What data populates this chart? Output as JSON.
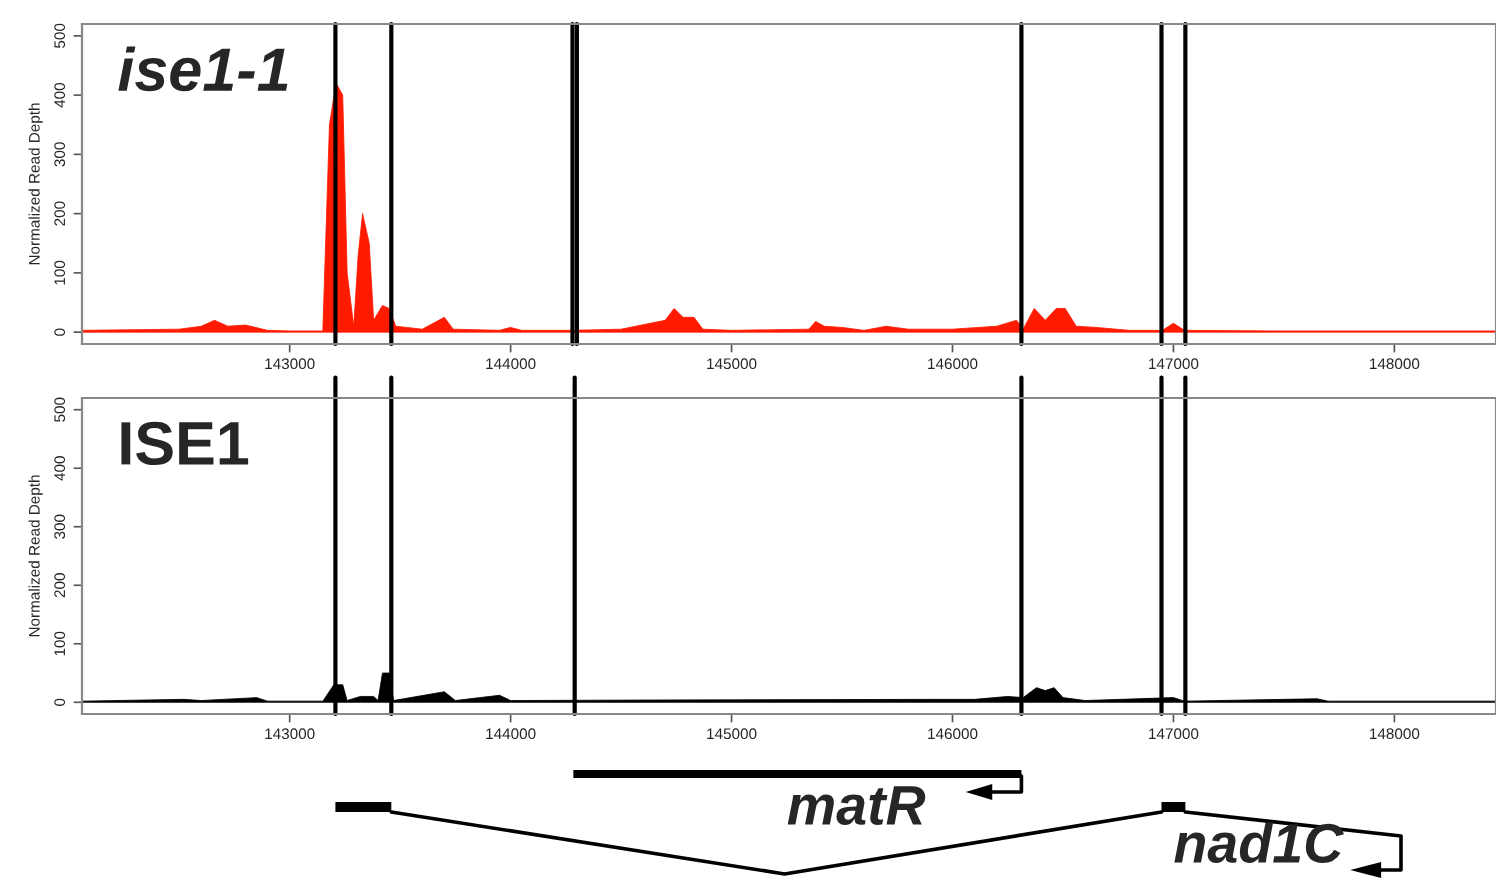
{
  "chart_data": [
    {
      "type": "area",
      "title": "ise1-1",
      "ylabel": "Normalized Read Depth",
      "series": [
        {
          "color": "#ff1a00",
          "x": [
            142060,
            142500,
            142600,
            142660,
            142720,
            142800,
            142900,
            143000,
            143150,
            143180,
            143210,
            143240,
            143260,
            143290,
            143310,
            143330,
            143360,
            143380,
            143420,
            143450,
            143480,
            143600,
            143700,
            143740,
            143950,
            144000,
            144050,
            144280,
            144500,
            144700,
            144740,
            144780,
            144830,
            144870,
            145000,
            145350,
            145380,
            145420,
            145500,
            145600,
            145700,
            145800,
            146000,
            146200,
            146290,
            146320,
            146370,
            146420,
            146470,
            146510,
            146560,
            146650,
            146800,
            146950,
            147000,
            147050,
            147500,
            148460
          ],
          "values": [
            3,
            5,
            10,
            20,
            10,
            12,
            3,
            2,
            2,
            350,
            420,
            400,
            100,
            10,
            130,
            200,
            150,
            20,
            45,
            40,
            10,
            5,
            25,
            5,
            3,
            8,
            3,
            3,
            5,
            20,
            40,
            25,
            25,
            5,
            3,
            5,
            18,
            10,
            8,
            3,
            10,
            5,
            5,
            10,
            20,
            5,
            40,
            20,
            40,
            40,
            10,
            8,
            3,
            3,
            15,
            3,
            2,
            2
          ]
        }
      ],
      "xlim": [
        142060,
        148460
      ],
      "xticks": [
        143000,
        144000,
        145000,
        146000,
        147000,
        148000
      ],
      "ylim": [
        -20,
        520
      ],
      "yticks": [
        0,
        100,
        200,
        300,
        400,
        500
      ],
      "grid": false,
      "legend": false,
      "ref_lines": [
        {
          "axis": "x",
          "value": 143207
        },
        {
          "axis": "x",
          "value": 143460
        },
        {
          "axis": "x",
          "value": 144280
        },
        {
          "axis": "x",
          "value": 144300
        },
        {
          "axis": "x",
          "value": 146312
        },
        {
          "axis": "x",
          "value": 146946
        },
        {
          "axis": "x",
          "value": 147054
        }
      ]
    },
    {
      "type": "area",
      "title": "ISE1",
      "ylabel": "Normalized Read Depth",
      "series": [
        {
          "color": "#000000",
          "x": [
            142060,
            142520,
            142600,
            142850,
            142900,
            143150,
            143200,
            143240,
            143260,
            143320,
            143380,
            143400,
            143420,
            143450,
            143470,
            143700,
            143750,
            143950,
            144000,
            144700,
            145900,
            146100,
            146250,
            146320,
            146380,
            146420,
            146460,
            146500,
            146600,
            147000,
            147050,
            147650,
            147700,
            148460
          ],
          "values": [
            2,
            5,
            3,
            8,
            2,
            2,
            30,
            30,
            3,
            10,
            10,
            3,
            50,
            50,
            3,
            18,
            3,
            12,
            3,
            4,
            5,
            5,
            10,
            8,
            25,
            20,
            25,
            8,
            3,
            8,
            2,
            6,
            2,
            2
          ]
        }
      ],
      "xlim": [
        142060,
        148460
      ],
      "xticks": [
        143000,
        144000,
        145000,
        146000,
        147000,
        148000
      ],
      "ylim": [
        -20,
        520
      ],
      "yticks": [
        0,
        100,
        200,
        300,
        400,
        500
      ],
      "grid": false,
      "legend": false,
      "ref_lines": [
        {
          "axis": "x",
          "value": 143207
        },
        {
          "axis": "x",
          "value": 143460
        },
        {
          "axis": "x",
          "value": 144290
        },
        {
          "axis": "x",
          "value": 146312
        },
        {
          "axis": "x",
          "value": 146946
        },
        {
          "axis": "x",
          "value": 147054
        }
      ],
      "annotations": [
        "matR",
        "nad1C"
      ]
    }
  ]
}
